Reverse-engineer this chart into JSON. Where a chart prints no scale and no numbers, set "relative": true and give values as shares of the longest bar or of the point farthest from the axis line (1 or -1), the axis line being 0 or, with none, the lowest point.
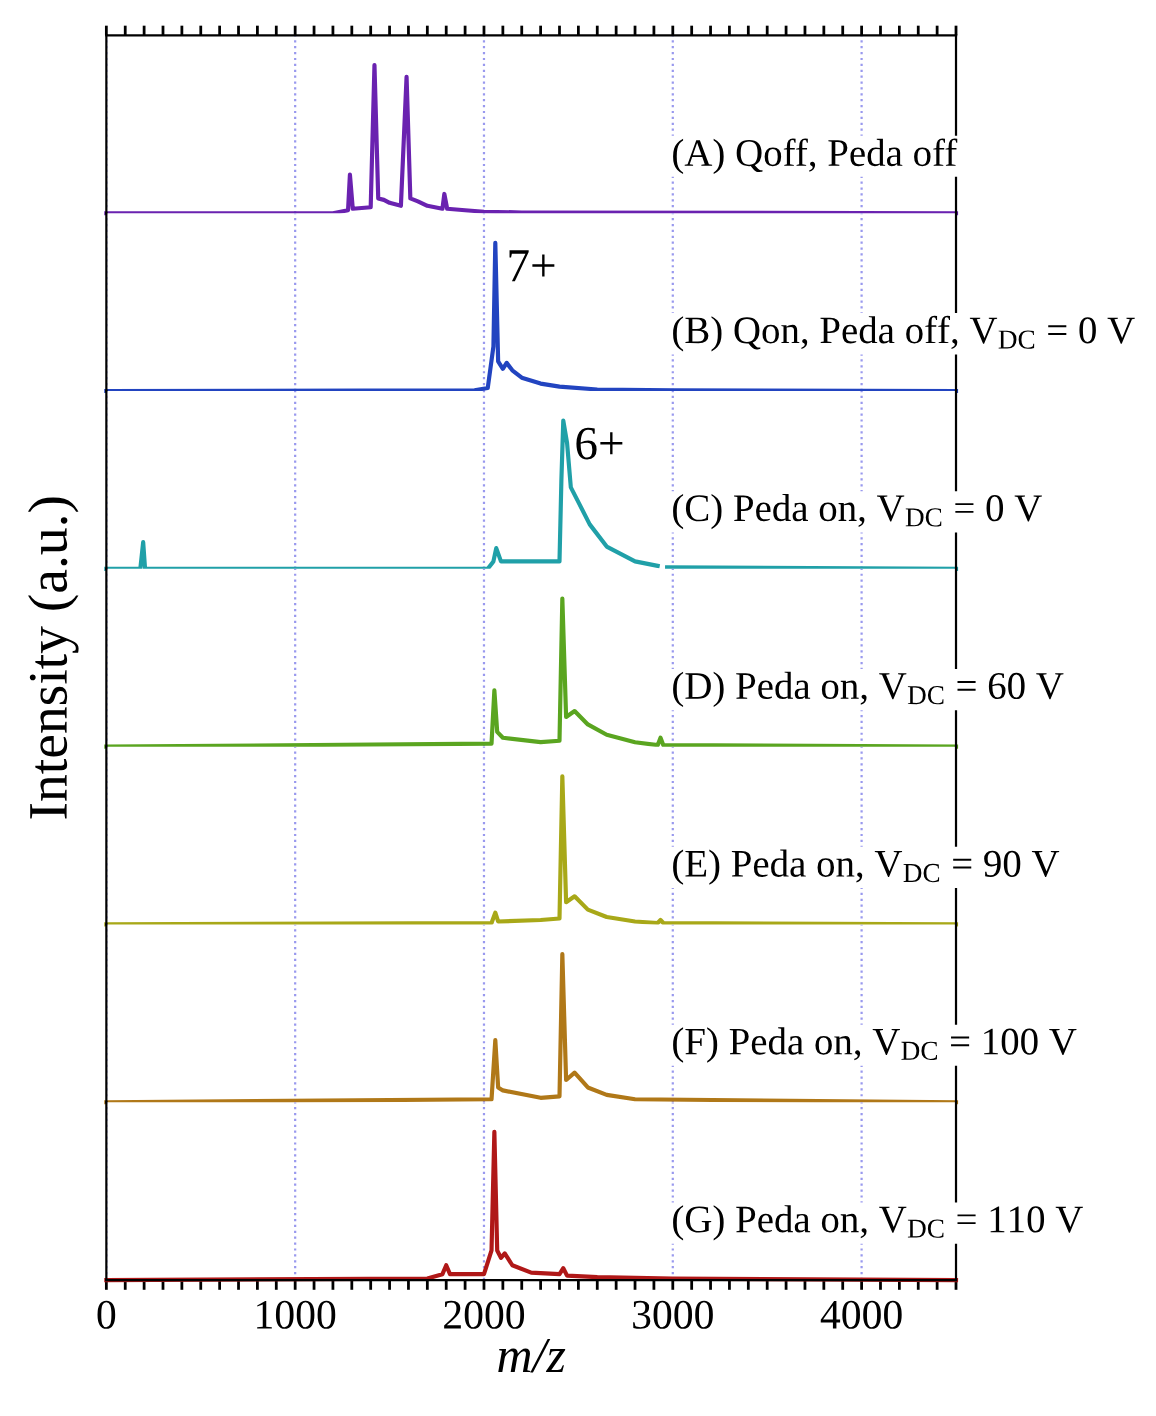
{
  "chart_data": [
    {
      "type": "line",
      "relative": true,
      "tick_labels": false,
      "grid": "x",
      "xlim": [
        0,
        4500
      ],
      "annotations": [
        "(A) Qoff, Peda off"
      ],
      "series": [
        {
          "color": "#6a22b0",
          "x": [
            0,
            1200,
            1240,
            1280,
            1290,
            1305,
            1400,
            1420,
            1440,
            1470,
            1500,
            1560,
            1590,
            1610,
            1650,
            1700,
            1780,
            1790,
            1805,
            1900,
            2000,
            2200,
            4500
          ],
          "values": [
            0,
            0,
            0.01,
            0.02,
            0.26,
            0.03,
            0.04,
            1.0,
            0.1,
            0.09,
            0.07,
            0.05,
            0.92,
            0.1,
            0.08,
            0.05,
            0.03,
            0.13,
            0.03,
            0.02,
            0.01,
            0.005,
            0
          ]
        }
      ]
    },
    {
      "type": "line",
      "relative": true,
      "tick_labels": false,
      "grid": "x",
      "xlim": [
        0,
        4500
      ],
      "annotations": [
        "(B) Qon, Peda off, V$_{DC}$ = 0 V",
        {
          "text": "7+",
          "x": 2060,
          "y": 1.0
        }
      ],
      "series": [
        {
          "color": "#2244c0",
          "x": [
            0,
            1950,
            2020,
            2050,
            2060,
            2075,
            2100,
            2120,
            2150,
            2200,
            2300,
            2400,
            2600,
            3000,
            4500
          ],
          "values": [
            0,
            0.005,
            0.02,
            0.3,
            1.0,
            0.2,
            0.15,
            0.19,
            0.14,
            0.09,
            0.05,
            0.03,
            0.01,
            0.004,
            0
          ]
        }
      ]
    },
    {
      "type": "line",
      "relative": true,
      "tick_labels": false,
      "grid": "x",
      "xlim": [
        0,
        4500
      ],
      "annotations": [
        "(C) Peda on, V$_{DC}$ = 0 V",
        {
          "text": "6+",
          "x": 2420,
          "y": 1.0
        }
      ],
      "series": [
        {
          "color": "#20a0a8",
          "x": [
            0,
            180,
            195,
            205,
            2020,
            2050,
            2065,
            2090,
            2400,
            2410,
            2420,
            2440,
            2460,
            2500,
            2560,
            2650,
            2800,
            2920,
            2950,
            2970,
            4500
          ],
          "values": [
            0,
            0,
            0.18,
            0,
            0,
            0.05,
            0.14,
            0.05,
            0.05,
            0.6,
            1.0,
            0.85,
            0.55,
            0.45,
            0.3,
            0.15,
            0.05,
            0.02,
            null,
            0.01,
            0
          ]
        }
      ]
    },
    {
      "type": "line",
      "relative": true,
      "tick_labels": false,
      "grid": "x",
      "xlim": [
        0,
        4500
      ],
      "ylabel": "Intensity (a.u.)",
      "annotations": [
        "(D) Peda on, V$_{DC}$ = 60 V"
      ],
      "series": [
        {
          "color": "#5aa520",
          "x": [
            0,
            2040,
            2055,
            2070,
            2100,
            2300,
            2400,
            2415,
            2435,
            2480,
            2550,
            2650,
            2800,
            2920,
            2935,
            2950,
            4500
          ],
          "values": [
            0,
            0.02,
            0.38,
            0.1,
            0.06,
            0.03,
            0.04,
            1.0,
            0.2,
            0.24,
            0.15,
            0.08,
            0.03,
            0.01,
            0.06,
            0.01,
            0
          ]
        }
      ]
    },
    {
      "type": "line",
      "relative": true,
      "tick_labels": false,
      "grid": "x",
      "xlim": [
        0,
        4500
      ],
      "annotations": [
        "(E) Peda on, V$_{DC}$ = 90 V"
      ],
      "series": [
        {
          "color": "#a8a818",
          "x": [
            0,
            2040,
            2060,
            2075,
            2300,
            2400,
            2415,
            2435,
            2480,
            2550,
            2650,
            2800,
            2920,
            2935,
            2950,
            4500
          ],
          "values": [
            0,
            0.01,
            0.08,
            0.02,
            0.03,
            0.04,
            1.0,
            0.15,
            0.19,
            0.1,
            0.05,
            0.02,
            0.01,
            0.03,
            0.01,
            0
          ]
        }
      ]
    },
    {
      "type": "line",
      "relative": true,
      "tick_labels": false,
      "grid": "x",
      "xlim": [
        0,
        4500
      ],
      "annotations": [
        "(F) Peda on, V$_{DC}$ = 100 V"
      ],
      "series": [
        {
          "color": "#b07818",
          "x": [
            0,
            2040,
            2060,
            2075,
            2100,
            2300,
            2400,
            2415,
            2435,
            2480,
            2550,
            2650,
            2800,
            4500
          ],
          "values": [
            0,
            0.02,
            0.42,
            0.1,
            0.08,
            0.03,
            0.04,
            1.0,
            0.15,
            0.2,
            0.1,
            0.05,
            0.02,
            0
          ]
        }
      ]
    },
    {
      "type": "line",
      "relative": true,
      "grid": "x",
      "xlim": [
        0,
        4500
      ],
      "xlabel": "m/z",
      "annotations": [
        "(G) Peda on, V$_{DC}$ = 110 V"
      ],
      "xticks": [
        0,
        {
          "value": 100,
          "label": null
        },
        {
          "value": 200,
          "label": null
        },
        {
          "value": 300,
          "label": null
        },
        {
          "value": 400,
          "label": null
        },
        {
          "value": 500,
          "label": null
        },
        {
          "value": 600,
          "label": null
        },
        {
          "value": 700,
          "label": null
        },
        {
          "value": 800,
          "label": null
        },
        {
          "value": 900,
          "label": null
        },
        1000,
        {
          "value": 1100,
          "label": null
        },
        {
          "value": 1200,
          "label": null
        },
        {
          "value": 1300,
          "label": null
        },
        {
          "value": 1400,
          "label": null
        },
        {
          "value": 1500,
          "label": null
        },
        {
          "value": 1600,
          "label": null
        },
        {
          "value": 1700,
          "label": null
        },
        {
          "value": 1800,
          "label": null
        },
        {
          "value": 1900,
          "label": null
        },
        2000,
        {
          "value": 2100,
          "label": null
        },
        {
          "value": 2200,
          "label": null
        },
        {
          "value": 2300,
          "label": null
        },
        {
          "value": 2400,
          "label": null
        },
        {
          "value": 2500,
          "label": null
        },
        {
          "value": 2600,
          "label": null
        },
        {
          "value": 2700,
          "label": null
        },
        {
          "value": 2800,
          "label": null
        },
        {
          "value": 2900,
          "label": null
        },
        3000,
        {
          "value": 3100,
          "label": null
        },
        {
          "value": 3200,
          "label": null
        },
        {
          "value": 3300,
          "label": null
        },
        {
          "value": 3400,
          "label": null
        },
        {
          "value": 3500,
          "label": null
        },
        {
          "value": 3600,
          "label": null
        },
        {
          "value": 3700,
          "label": null
        },
        {
          "value": 3800,
          "label": null
        },
        {
          "value": 3900,
          "label": null
        },
        4000,
        {
          "value": 4100,
          "label": null
        },
        {
          "value": 4200,
          "label": null
        },
        {
          "value": 4300,
          "label": null
        },
        {
          "value": 4400,
          "label": null
        },
        {
          "value": 4500,
          "label": null
        }
      ],
      "series": [
        {
          "color": "#b01818",
          "x": [
            0,
            1700,
            1780,
            1800,
            1820,
            2000,
            2040,
            2055,
            2070,
            2090,
            2110,
            2150,
            2250,
            2400,
            2420,
            2440,
            2600,
            3000,
            4500
          ],
          "values": [
            0,
            0.01,
            0.04,
            0.1,
            0.04,
            0.04,
            0.2,
            1.0,
            0.2,
            0.15,
            0.18,
            0.1,
            0.05,
            0.04,
            0.08,
            0.03,
            0.02,
            0.01,
            0
          ]
        }
      ]
    }
  ]
}
